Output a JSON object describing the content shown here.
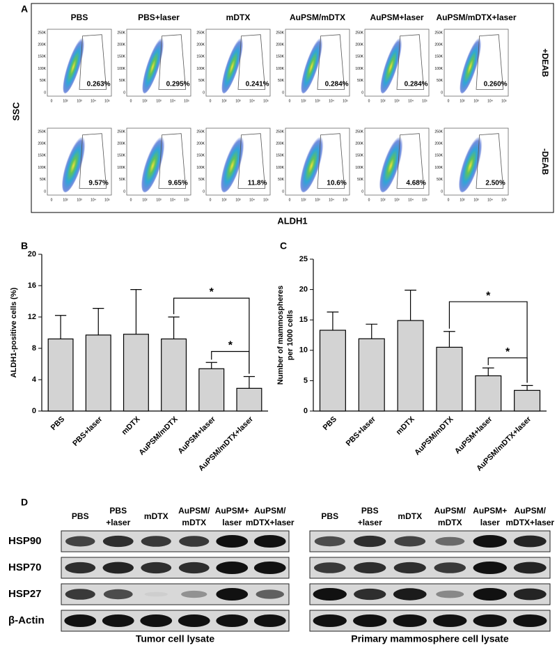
{
  "panel_a": {
    "label": "A",
    "columns": [
      "PBS",
      "PBS+laser",
      "mDTX",
      "AuPSM/mDTX",
      "AuPSM+laser",
      "AuPSM/mDTX+laser"
    ],
    "rows": [
      "+DEAB",
      "-DEAB"
    ],
    "y_label": "SSC",
    "x_label": "ALDH1",
    "x_ticks": [
      "0",
      "10²",
      "10³",
      "10⁴",
      "10⁵"
    ],
    "y_ticks": [
      "250K",
      "200K",
      "150K",
      "100K",
      "50K",
      "0"
    ],
    "percentages": [
      [
        "0.263%",
        "0.295%",
        "0.241%",
        "0.284%",
        "0.284%",
        "0.260%"
      ],
      [
        "9.57%",
        "9.65%",
        "11.8%",
        "10.6%",
        "4.68%",
        "2.50%"
      ]
    ]
  },
  "chart_data": [
    {
      "type": "bar",
      "panel": "B",
      "y_label": [
        "ALDH1-positive cells (%)"
      ],
      "categories": [
        "PBS",
        "PBS+laser",
        "mDTX",
        "AuPSM/mDTX",
        "AuPSM+laser",
        "AuPSM/mDTX+laser"
      ],
      "values": [
        9.2,
        9.7,
        9.8,
        9.2,
        5.4,
        2.9
      ],
      "errors": [
        3.0,
        3.4,
        5.7,
        2.8,
        0.8,
        1.5
      ],
      "color": "#d3d3d3",
      "ylim": [
        0,
        20
      ],
      "yticks": [
        0,
        4,
        8,
        12,
        16,
        20
      ],
      "annotations": [
        "*",
        "*"
      ]
    },
    {
      "type": "bar",
      "panel": "C",
      "y_label": [
        "Number of mammospheres",
        "per 1000 cells"
      ],
      "categories": [
        "PBS",
        "PBS+laser",
        "mDTX",
        "AuPSM/mDTX",
        "AuPSM+laser",
        "AuPSM/mDTX+laser"
      ],
      "values": [
        13.3,
        11.9,
        14.9,
        10.5,
        5.8,
        3.4
      ],
      "errors": [
        3.0,
        2.4,
        5.0,
        2.6,
        1.3,
        0.8
      ],
      "color": "#d3d3d3",
      "ylim": [
        0,
        25
      ],
      "yticks": [
        0,
        5,
        10,
        15,
        20,
        25
      ],
      "annotations": [
        "*",
        "*"
      ]
    }
  ],
  "panel_d": {
    "label": "D",
    "proteins": [
      "HSP90",
      "HSP70",
      "HSP27",
      "β-Actin"
    ],
    "blots": [
      {
        "lanes": [
          [
            "PBS"
          ],
          [
            "PBS",
            "+laser"
          ],
          [
            "mDTX"
          ],
          [
            "AuPSM/",
            "mDTX"
          ],
          [
            "AuPSM+",
            "laser"
          ],
          [
            "AuPSM/",
            "mDTX+laser"
          ]
        ],
        "caption": "Tumor cell lysate"
      },
      {
        "lanes": [
          [
            "PBS"
          ],
          [
            "PBS",
            "+laser"
          ],
          [
            "mDTX"
          ],
          [
            "AuPSM/",
            "mDTX"
          ],
          [
            "AuPSM+",
            "laser"
          ],
          [
            "AuPSM/",
            "mDTX+laser"
          ]
        ],
        "caption": "Primary mammosphere cell lysate"
      }
    ]
  }
}
